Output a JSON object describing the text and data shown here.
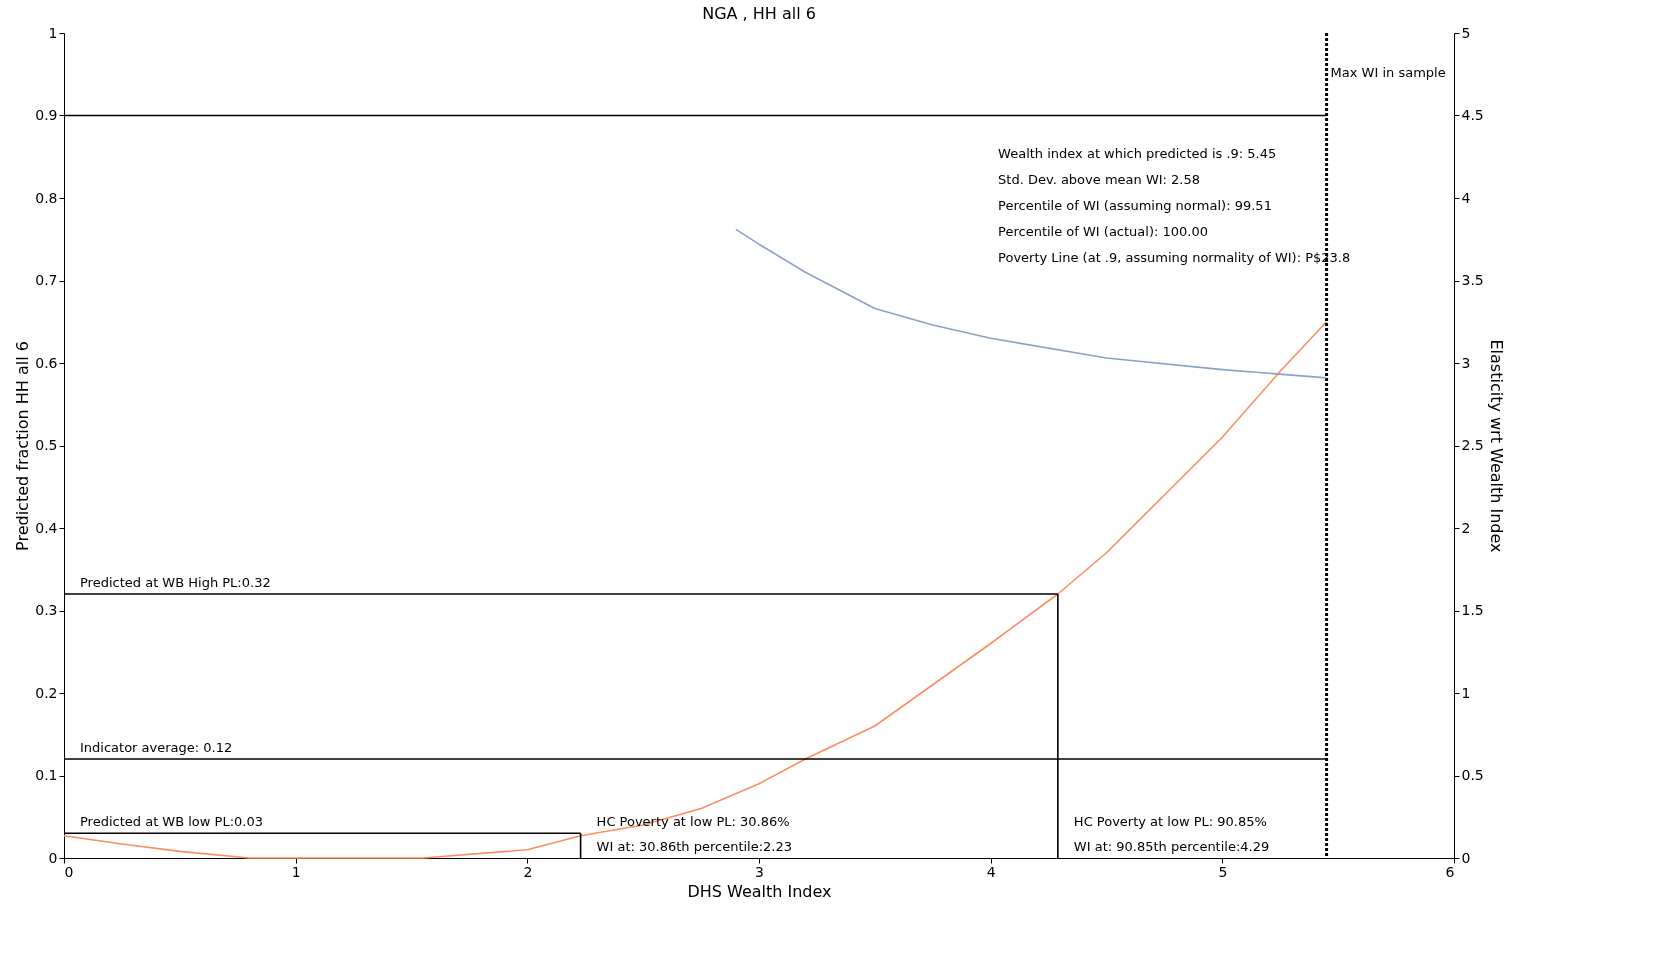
{
  "chart_data": {
    "type": "line",
    "title": "NGA , HH all 6",
    "xlabel": "DHS Wealth Index",
    "ylabel": "Predicted fraction HH all 6",
    "y2label": "Elasticity wrt Wealth Index",
    "xlim": [
      0,
      6
    ],
    "xticks": [
      0,
      1,
      2,
      3,
      4,
      5,
      6
    ],
    "ylim": [
      0,
      1
    ],
    "yticks": [
      0,
      0.1,
      0.2,
      0.3,
      0.4,
      0.5,
      0.6,
      0.7,
      0.8,
      0.9,
      1
    ],
    "y2lim": [
      0,
      5
    ],
    "y2ticks": [
      0,
      0.5,
      1,
      1.5,
      2,
      2.5,
      3,
      3.5,
      4,
      4.5,
      5
    ],
    "grid": false,
    "legend": false,
    "series": [
      {
        "color": "#fc8d62",
        "x": [
          0,
          0.25,
          0.5,
          0.8,
          1.55,
          2.0,
          2.23,
          2.5,
          2.75,
          3.0,
          3.2,
          3.5,
          3.75,
          4.0,
          4.29,
          4.5,
          4.75,
          5.0,
          5.25,
          5.45
        ],
        "values": [
          0.027,
          0.017,
          0.008,
          0,
          0,
          0.01,
          0.027,
          0.04,
          0.06,
          0.09,
          0.12,
          0.16,
          0.21,
          0.26,
          0.32,
          0.37,
          0.44,
          0.51,
          0.59,
          0.65
        ]
      },
      {
        "color": "#8da0cb",
        "axis": "y2",
        "x": [
          2.9,
          3.0,
          3.2,
          3.5,
          3.75,
          4.0,
          4.5,
          5.0,
          5.45
        ],
        "values": [
          3.81,
          3.72,
          3.55,
          3.33,
          3.23,
          3.15,
          3.03,
          2.96,
          2.91
        ]
      },
      {
        "color": "#000000",
        "x": [
          0,
          5.45
        ],
        "values": [
          0.9,
          0.9
        ]
      },
      {
        "color": "#000000",
        "x": [
          0,
          4.29
        ],
        "values": [
          0.32,
          0.32
        ]
      },
      {
        "color": "#000000",
        "x": [
          4.29,
          4.29
        ],
        "values": [
          0,
          0.32
        ]
      },
      {
        "color": "#000000",
        "x": [
          0,
          2.23
        ],
        "values": [
          0.03,
          0.03
        ]
      },
      {
        "color": "#000000",
        "x": [
          2.23,
          2.23
        ],
        "values": [
          0,
          0.03
        ]
      },
      {
        "color": "#000000",
        "x": [
          0,
          5.45
        ],
        "values": [
          0.12,
          0.12
        ]
      }
    ],
    "ref_lines": [
      {
        "axis": "x",
        "value": 5.45,
        "label": "Max WI in sample",
        "color": "#000000",
        "line_style": "dotted"
      }
    ],
    "annotations": [
      {
        "text": "Predicted at WB High PL:0.32",
        "x": 0,
        "y": 0.32
      },
      {
        "text": "Indicator average: 0.12",
        "x": 0,
        "y": 0.12
      },
      {
        "text": "Predicted at WB low PL:0.03",
        "x": 0,
        "y": 0.03
      },
      {
        "text": "HC Poverty at low PL: 30.86%",
        "x": 2.23,
        "y": 0.03
      },
      {
        "text": "WI at: 30.86th percentile:2.23",
        "x": 2.23,
        "y": 0
      },
      {
        "text": "HC Poverty at low PL: 90.85%",
        "x": 4.29,
        "y": 0.03
      },
      {
        "text": "WI at: 90.85th percentile:4.29",
        "x": 4.29,
        "y": 0
      },
      "Wealth index at which predicted is .9: 5.45",
      "Std. Dev. above mean WI: 2.58",
      "Percentile of WI (assuming normal): 99.51",
      "Percentile of WI (actual): 100.00",
      "Poverty Line (at .9, assuming normality of WI): P$23.8"
    ]
  }
}
